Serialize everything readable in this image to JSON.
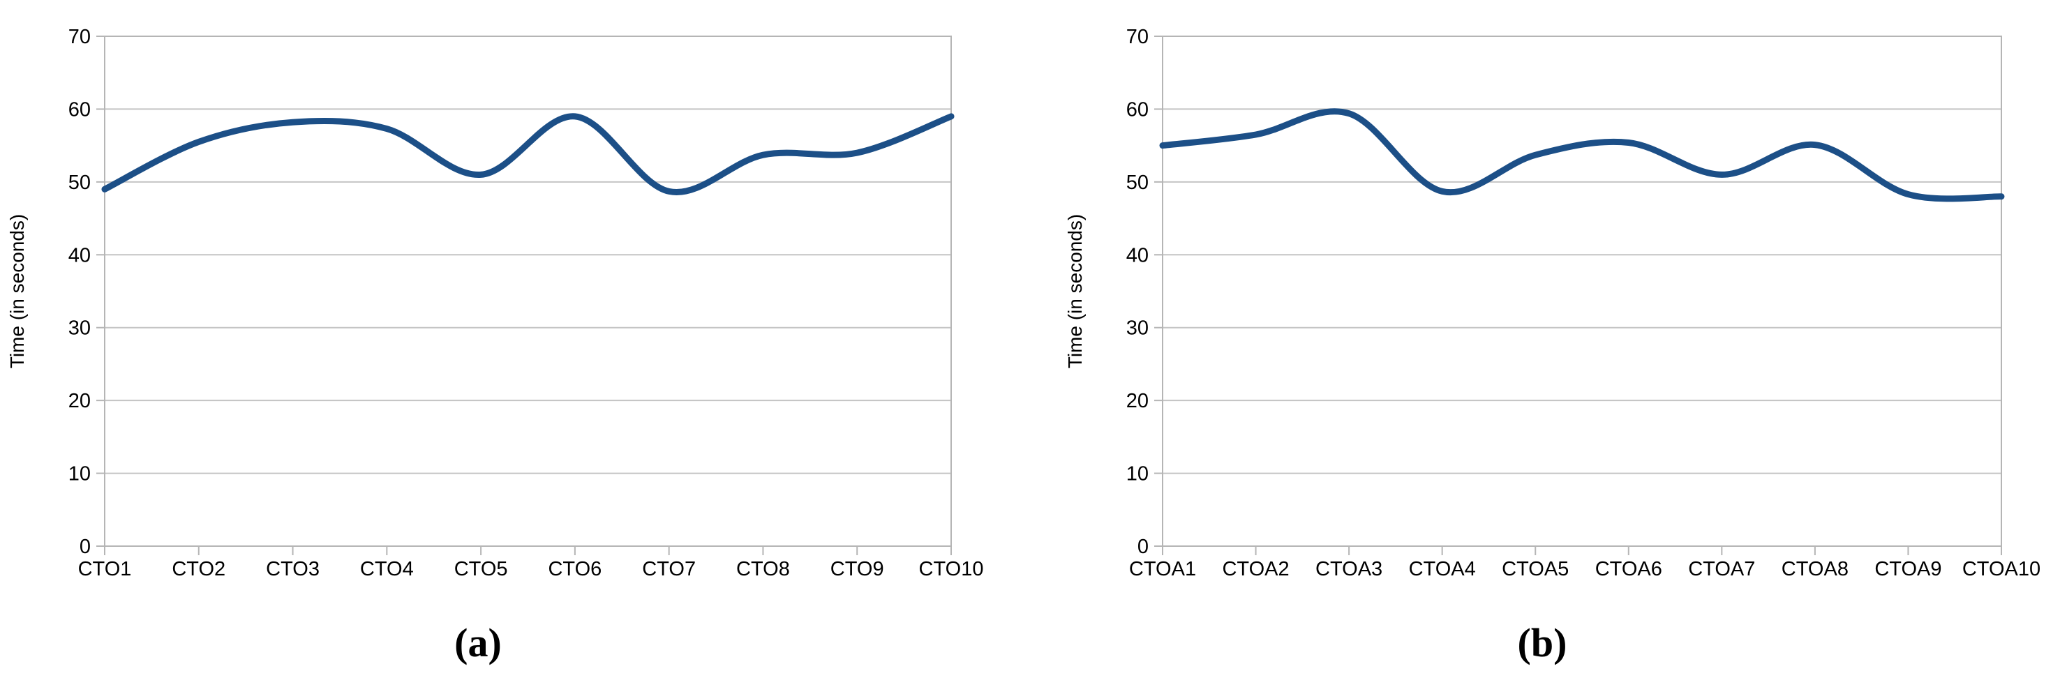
{
  "chart_data": [
    {
      "id": "a",
      "type": "line",
      "title": "",
      "xlabel": "",
      "ylabel": "Time (in seconds)",
      "ylim": [
        0,
        70
      ],
      "ytick_interval": 10,
      "ytick_labels": [
        "0",
        "10",
        "20",
        "30",
        "40",
        "50",
        "60",
        "70"
      ],
      "grid": true,
      "legend_position": "none",
      "line_color": "#1c4f87",
      "grid_color": "#c4c4c4",
      "axis_color": "#b5b5b5",
      "categories": [
        "CTO1",
        "CTO2",
        "CTO3",
        "CTO4",
        "CTO5",
        "CTO6",
        "CTO7",
        "CTO8",
        "CTO9",
        "CTO10"
      ],
      "series": [
        {
          "name": "Time (in seconds)",
          "values": [
            49,
            55.5,
            58.2,
            57.3,
            51,
            59,
            48.7,
            53.7,
            54,
            59
          ]
        }
      ],
      "caption": "(a)"
    },
    {
      "id": "b",
      "type": "line",
      "title": "",
      "xlabel": "",
      "ylabel": "Time (in seconds)",
      "ylim": [
        0,
        70
      ],
      "ytick_interval": 10,
      "ytick_labels": [
        "0",
        "10",
        "20",
        "30",
        "40",
        "50",
        "60",
        "70"
      ],
      "grid": true,
      "legend_position": "none",
      "line_color": "#1c4f87",
      "grid_color": "#c4c4c4",
      "axis_color": "#b5b5b5",
      "categories": [
        "CTOA1",
        "CTOA2",
        "CTOA3",
        "CTOA4",
        "CTOA5",
        "CTOA6",
        "CTOA7",
        "CTOA8",
        "CTOA9",
        "CTOA10"
      ],
      "series": [
        {
          "name": "Time (in seconds)",
          "values": [
            55,
            56.5,
            59.4,
            48.7,
            53.7,
            55.4,
            51,
            55.1,
            48.3,
            48
          ]
        }
      ],
      "caption": "(b)"
    }
  ]
}
